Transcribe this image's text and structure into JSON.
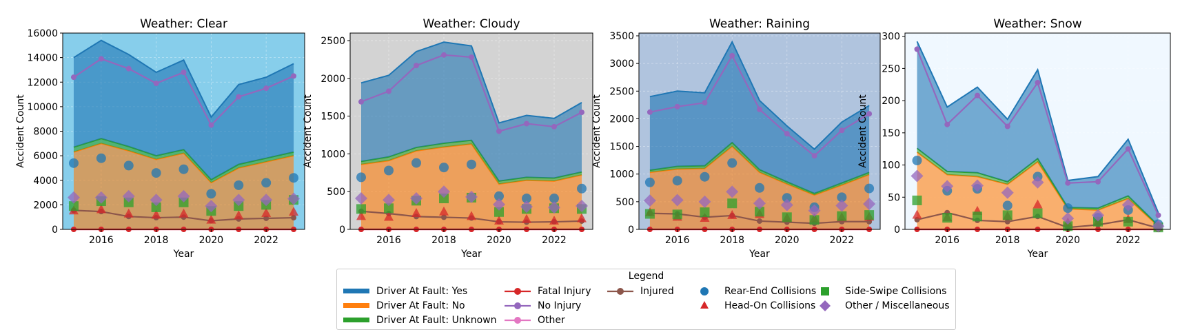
{
  "colors": {
    "fault_yes": "#1f77b4",
    "fault_no": "#ff7f0e",
    "fault_unknown": "#2ca02c",
    "fatal": "#d62728",
    "no_injury": "#9467bd",
    "injured": "#8c564b",
    "other": "#e377c2",
    "rear_end": "#1f77b4",
    "head_on": "#d62728",
    "side_swipe": "#2ca02c",
    "misc": "#9467bd"
  },
  "legend": {
    "title": "Legend",
    "items": [
      {
        "label": "Driver At Fault: Yes",
        "kind": "area",
        "color": "#1f77b4"
      },
      {
        "label": "Driver At Fault: No",
        "kind": "area",
        "color": "#ff7f0e"
      },
      {
        "label": "Driver At Fault: Unknown",
        "kind": "area",
        "color": "#2ca02c"
      },
      {
        "label": "Fatal Injury",
        "kind": "line",
        "color": "#d62728"
      },
      {
        "label": "No Injury",
        "kind": "line",
        "color": "#9467bd"
      },
      {
        "label": "Other",
        "kind": "line",
        "color": "#e377c2"
      },
      {
        "label": "Injured",
        "kind": "line",
        "color": "#8c564b"
      },
      {
        "label": "Rear-End Collisions",
        "kind": "circle",
        "color": "#1f77b4"
      },
      {
        "label": "Head-On Collisions",
        "kind": "triangle",
        "color": "#d62728"
      },
      {
        "label": "Side-Swipe Collisions",
        "kind": "square",
        "color": "#2ca02c"
      },
      {
        "label": "Other / Miscellaneous",
        "kind": "diamond",
        "color": "#9467bd"
      }
    ]
  },
  "chart_data": [
    {
      "type": "area",
      "title": "Weather: Clear",
      "xlabel": "Year",
      "ylabel": "Accident Count",
      "background": "#87ceeb",
      "x": [
        2015,
        2016,
        2017,
        2018,
        2019,
        2020,
        2021,
        2022,
        2023
      ],
      "xticks": [
        2016,
        2018,
        2020,
        2022
      ],
      "ylim": [
        0,
        16000
      ],
      "yticks": [
        0,
        2000,
        4000,
        6000,
        8000,
        10000,
        12000,
        14000,
        16000
      ],
      "stack": {
        "fault_no": [
          6300,
          7000,
          6400,
          5700,
          6200,
          3800,
          5000,
          5500,
          6000
        ],
        "fault_unknown": [
          400,
          400,
          350,
          300,
          300,
          250,
          300,
          300,
          300
        ],
        "fault_yes": [
          7300,
          8000,
          7500,
          6800,
          7300,
          5100,
          6500,
          6600,
          7200
        ]
      },
      "lines": {
        "no_injury": [
          12400,
          13900,
          13100,
          11900,
          12800,
          8500,
          10800,
          11500,
          12500
        ],
        "injured": [
          1550,
          1450,
          1050,
          950,
          1000,
          700,
          850,
          900,
          950
        ],
        "fatal": [
          0,
          0,
          0,
          0,
          0,
          0,
          0,
          0,
          0
        ],
        "other": [
          0,
          0,
          0,
          0,
          0,
          0,
          0,
          0,
          0
        ]
      },
      "markers": {
        "rear_end": [
          5400,
          5800,
          5200,
          4600,
          4900,
          2900,
          3600,
          3800,
          4200
        ],
        "head_on": [
          1500,
          1600,
          1250,
          1150,
          1250,
          750,
          1100,
          1300,
          1400
        ],
        "side_swipe": [
          1900,
          2300,
          2200,
          1800,
          2200,
          1500,
          1900,
          2000,
          2400
        ],
        "misc": [
          2600,
          2600,
          2700,
          2400,
          2700,
          1900,
          2400,
          2400,
          2500
        ]
      }
    },
    {
      "type": "area",
      "title": "Weather: Cloudy",
      "xlabel": "Year",
      "ylabel": "Accident Count",
      "background": "#d3d3d3",
      "x": [
        2015,
        2016,
        2017,
        2018,
        2019,
        2020,
        2021,
        2022,
        2023
      ],
      "xticks": [
        2016,
        2018,
        2020,
        2022
      ],
      "ylim": [
        0,
        2600
      ],
      "yticks": [
        0,
        500,
        1000,
        1500,
        2000,
        2500
      ],
      "stack": {
        "fault_no": [
          860,
          910,
          1040,
          1090,
          1130,
          600,
          650,
          640,
          720
        ],
        "fault_unknown": [
          40,
          50,
          45,
          50,
          50,
          40,
          40,
          40,
          40
        ],
        "fault_yes": [
          1040,
          1080,
          1270,
          1340,
          1250,
          770,
          820,
          790,
          920
        ]
      },
      "lines": {
        "no_injury": [
          1690,
          1830,
          2170,
          2310,
          2280,
          1300,
          1400,
          1360,
          1550
        ],
        "injured": [
          240,
          210,
          170,
          160,
          150,
          100,
          95,
          100,
          110
        ],
        "fatal": [
          0,
          0,
          0,
          0,
          0,
          0,
          0,
          0,
          0
        ],
        "other": [
          0,
          0,
          0,
          0,
          0,
          0,
          0,
          0,
          0
        ]
      },
      "markers": {
        "rear_end": [
          690,
          780,
          880,
          820,
          860,
          440,
          410,
          410,
          540
        ],
        "head_on": [
          170,
          160,
          210,
          230,
          170,
          110,
          130,
          110,
          140
        ],
        "side_swipe": [
          270,
          280,
          380,
          410,
          420,
          230,
          270,
          280,
          270
        ],
        "misc": [
          410,
          390,
          410,
          500,
          430,
          330,
          300,
          290,
          310
        ]
      }
    },
    {
      "type": "area",
      "title": "Weather: Raining",
      "xlabel": "Year",
      "ylabel": "Accident Count",
      "background": "#b0c4de",
      "x": [
        2015,
        2016,
        2017,
        2018,
        2019,
        2020,
        2021,
        2022,
        2023
      ],
      "xticks": [
        2016,
        2018,
        2020,
        2022
      ],
      "ylim": [
        0,
        3550
      ],
      "yticks": [
        0,
        500,
        1000,
        1500,
        2000,
        2500,
        3000,
        3500
      ],
      "stack": {
        "fault_no": [
          1030,
          1090,
          1100,
          1500,
          1030,
          820,
          620,
          800,
          990
        ],
        "fault_unknown": [
          40,
          50,
          50,
          70,
          50,
          40,
          30,
          40,
          40
        ],
        "fault_yes": [
          1330,
          1360,
          1320,
          1820,
          1250,
          1010,
          800,
          1100,
          1210
        ]
      },
      "lines": {
        "no_injury": [
          2120,
          2220,
          2290,
          3140,
          2170,
          1730,
          1330,
          1790,
          2090
        ],
        "injured": [
          290,
          280,
          220,
          250,
          150,
          130,
          110,
          140,
          140
        ],
        "fatal": [
          0,
          0,
          0,
          0,
          0,
          0,
          0,
          0,
          0
        ],
        "other": [
          0,
          0,
          0,
          0,
          0,
          0,
          0,
          0,
          0
        ]
      },
      "markers": {
        "rear_end": [
          850,
          880,
          950,
          1200,
          750,
          570,
          400,
          580,
          740
        ],
        "head_on": [
          300,
          220,
          200,
          250,
          270,
          200,
          190,
          210,
          220
        ],
        "side_swipe": [
          280,
          270,
          310,
          470,
          320,
          220,
          170,
          240,
          260
        ],
        "misc": [
          520,
          530,
          500,
          680,
          470,
          440,
          340,
          430,
          460
        ]
      }
    },
    {
      "type": "area",
      "title": "Weather: Snow",
      "xlabel": "Year",
      "ylabel": "Accident Count",
      "background": "#f0f8ff",
      "x": [
        2015,
        2016,
        2017,
        2018,
        2019,
        2020,
        2021,
        2022,
        2023
      ],
      "xticks": [
        2016,
        2018,
        2020,
        2022
      ],
      "ylim": [
        0,
        305
      ],
      "yticks": [
        0,
        50,
        100,
        150,
        200,
        250,
        300
      ],
      "stack": {
        "fault_no": [
          120,
          85,
          82,
          70,
          105,
          32,
          30,
          48,
          5
        ],
        "fault_unknown": [
          6,
          5,
          6,
          4,
          5,
          2,
          3,
          4,
          1
        ],
        "fault_yes": [
          166,
          100,
          133,
          97,
          138,
          42,
          49,
          88,
          20
        ]
      },
      "lines": {
        "no_injury": [
          280,
          163,
          208,
          160,
          228,
          72,
          74,
          125,
          22
        ],
        "injured": [
          15,
          26,
          14,
          12,
          20,
          3,
          7,
          15,
          2
        ],
        "fatal": [
          0,
          0,
          0,
          0,
          0,
          0,
          0,
          0,
          0
        ],
        "other": [
          0,
          0,
          0,
          0,
          0,
          0,
          0,
          0,
          0
        ]
      },
      "markers": {
        "rear_end": [
          107,
          60,
          63,
          37,
          82,
          33,
          18,
          30,
          8
        ],
        "head_on": [
          22,
          18,
          28,
          20,
          38,
          10,
          12,
          15,
          3
        ],
        "side_swipe": [
          45,
          18,
          20,
          22,
          25,
          5,
          12,
          12,
          3
        ],
        "misc": [
          83,
          67,
          68,
          57,
          73,
          17,
          22,
          38,
          5
        ]
      }
    }
  ]
}
